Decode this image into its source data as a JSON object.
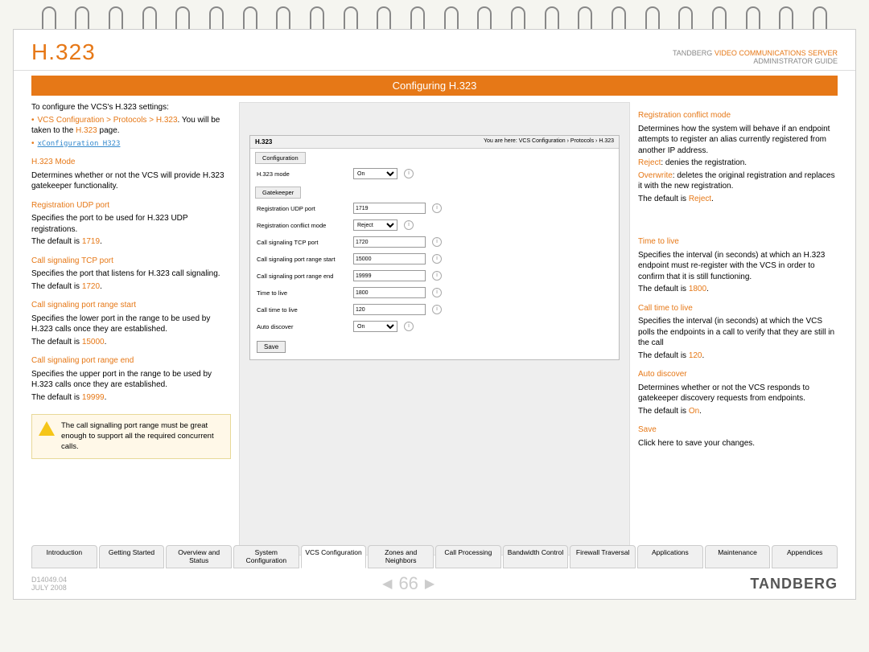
{
  "header": {
    "title": "H.323",
    "brand_line1_pre": "TANDBERG ",
    "brand_line1_orange": "VIDEO COMMUNICATIONS SERVER",
    "brand_line2": "ADMINISTRATOR GUIDE",
    "banner": "Configuring H.323"
  },
  "left": {
    "intro": "To configure the VCS's H.323 settings:",
    "nav_path": "VCS Configuration > Protocols > H.323",
    "nav_post": ". You will be taken to the ",
    "nav_page": "H.323",
    "nav_post2": " page.",
    "xconfig": "xConfiguration H323",
    "mode_hdr": "H.323 Mode",
    "mode_txt": "Determines whether or not the VCS will provide H.323 gatekeeper functionality.",
    "udp_hdr": "Registration UDP port",
    "udp_txt": "Specifies the port to be used for H.323 UDP registrations.",
    "udp_def_pre": "The default is ",
    "udp_def": "1719",
    "tcp_hdr": "Call signaling TCP port",
    "tcp_txt": "Specifies the port that listens for H.323 call signaling.",
    "tcp_def_pre": "The default is ",
    "tcp_def": "1720",
    "rs_hdr": "Call signaling port range start",
    "rs_txt": "Specifies the lower port in the range to be used by H.323 calls once they are established.",
    "rs_def_pre": "The default is ",
    "rs_def": "15000",
    "re_hdr": "Call signaling port range end",
    "re_txt": "Specifies the upper port in the range to be used by H.323 calls once they are established.",
    "re_def_pre": "The default is ",
    "re_def": "19999",
    "warn": "The call signalling port range must be great enough to support all the required concurrent calls."
  },
  "screenshot": {
    "title": "H.323",
    "crumb": "You are here: VCS Configuration › Protocols › H.323",
    "tab_config": "Configuration",
    "tab_gk": "Gatekeeper",
    "rows": {
      "mode": {
        "label": "H.323 mode",
        "value": "On"
      },
      "udp": {
        "label": "Registration UDP port",
        "value": "1719"
      },
      "conflict": {
        "label": "Registration conflict mode",
        "value": "Reject"
      },
      "tcp": {
        "label": "Call signaling TCP port",
        "value": "1720"
      },
      "rstart": {
        "label": "Call signaling port range start",
        "value": "15000"
      },
      "rend": {
        "label": "Call signaling port range end",
        "value": "19999"
      },
      "ttl": {
        "label": "Time to live",
        "value": "1800"
      },
      "cttl": {
        "label": "Call time to live",
        "value": "120"
      },
      "auto": {
        "label": "Auto discover",
        "value": "On"
      }
    },
    "save": "Save"
  },
  "right": {
    "conf_hdr": "Registration conflict mode",
    "conf_txt": "Determines how the system will behave if an endpoint attempts to register an alias currently registered from another IP address.",
    "conf_reject": "Reject",
    "conf_reject_txt": ": denies the registration.",
    "conf_over": "Overwrite",
    "conf_over_txt": ": deletes the original registration and replaces it with the new registration.",
    "conf_def_pre": "The default is ",
    "conf_def": "Reject",
    "ttl_hdr": "Time to live",
    "ttl_txt": "Specifies the interval (in seconds) at which an H.323 endpoint must re-register with the VCS in order to confirm that it is still functioning.",
    "ttl_def_pre": "The default is ",
    "ttl_def": "1800",
    "cttl_hdr": "Call time to live",
    "cttl_txt": "Specifies the interval (in seconds) at which the VCS polls the endpoints in a call to verify that they are still in the call",
    "cttl_def_pre": "The default is ",
    "cttl_def": "120",
    "auto_hdr": "Auto discover",
    "auto_txt": "Determines whether or not the VCS responds to gatekeeper discovery requests from endpoints.",
    "auto_def_pre": "The default is ",
    "auto_def": "On",
    "save_hdr": "Save",
    "save_txt": "Click here to save your changes."
  },
  "tabs": [
    "Introduction",
    "Getting Started",
    "Overview and Status",
    "System Configuration",
    "VCS Configuration",
    "Zones and Neighbors",
    "Call Processing",
    "Bandwidth Control",
    "Firewall Traversal",
    "Applications",
    "Maintenance",
    "Appendices"
  ],
  "active_tab": 4,
  "footer": {
    "doc_id": "D14049.04",
    "date": "JULY 2008",
    "page": "66",
    "brand": "TANDBERG"
  },
  "colors": {
    "orange": "#e67817"
  }
}
